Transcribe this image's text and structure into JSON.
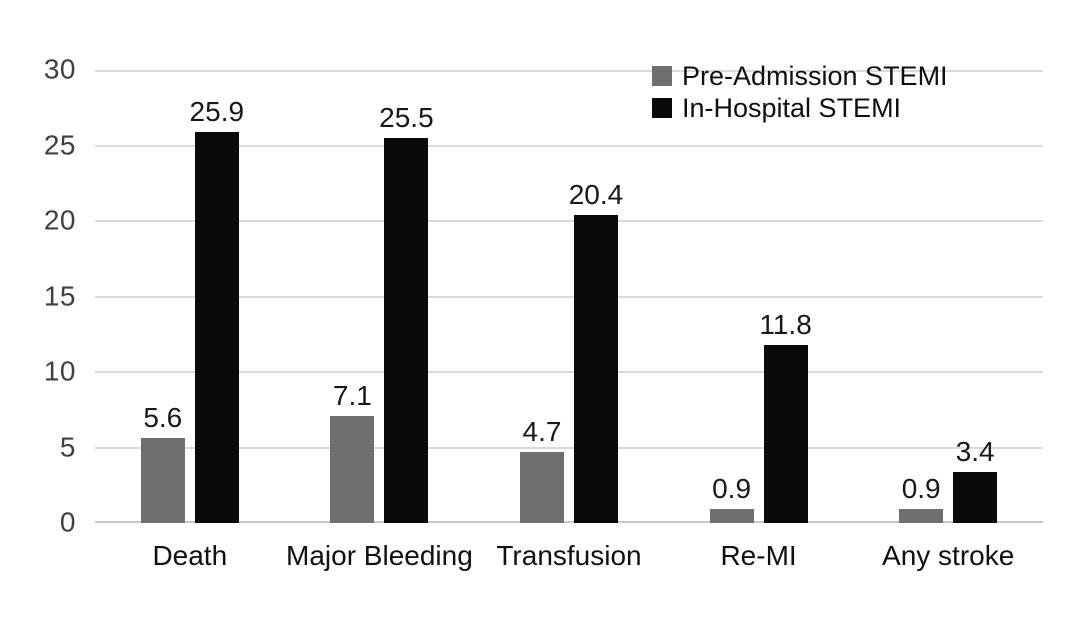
{
  "chart_data": {
    "type": "bar",
    "title": "",
    "xlabel": "",
    "ylabel": "",
    "categories": [
      "Death",
      "Major Bleeding",
      "Transfusion",
      "Re-MI",
      "Any stroke"
    ],
    "series": [
      {
        "name": "Pre-Admission STEMI",
        "color": "#6f6f6f",
        "values": [
          5.6,
          7.1,
          4.7,
          0.9,
          0.9
        ]
      },
      {
        "name": "In-Hospital STEMI",
        "color": "#0a0a0a",
        "values": [
          25.9,
          25.5,
          20.4,
          11.8,
          3.4
        ]
      }
    ],
    "ylim": [
      0,
      30
    ],
    "y_ticks": [
      0,
      5,
      10,
      15,
      20,
      25,
      30
    ],
    "grid": "horizontal",
    "legend_position": "top-right",
    "colors": {
      "gridline": "#dadada",
      "axis_text": "#404040",
      "label_text": "#101010"
    }
  }
}
